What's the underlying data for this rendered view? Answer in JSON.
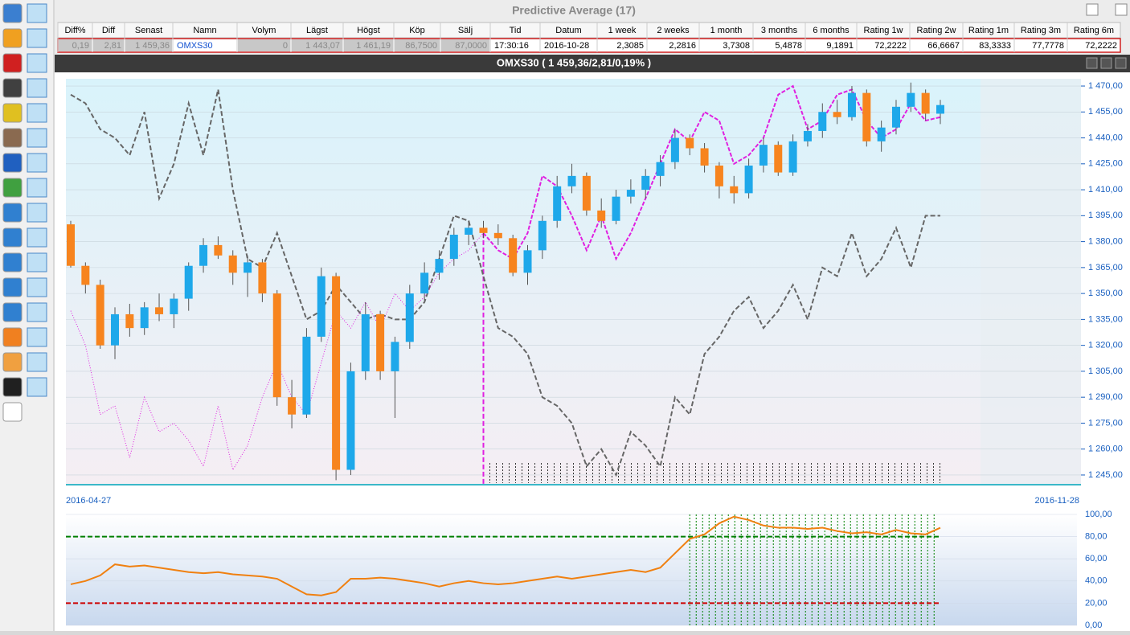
{
  "window_title": "Predictive Average (17)",
  "table": {
    "headers": [
      "Diff%",
      "Diff",
      "Senast",
      "Namn",
      "Volym",
      "Lägst",
      "Högst",
      "Köp",
      "Sälj",
      "Tid",
      "Datum",
      "1 week",
      "2 weeks",
      "1 month",
      "3 months",
      "6 months",
      "Rating 1w",
      "Rating 2w",
      "Rating 1m",
      "Rating 3m",
      "Rating 6m"
    ],
    "rows": [
      [
        "0,19",
        "2,81",
        "1 459,36",
        "OMXS30",
        "0",
        "1 443,07",
        "1 461,19",
        "86,7500",
        "87,0000",
        "17:30:16",
        "2016-10-28",
        "2,3085",
        "2,2816",
        "3,7308",
        "5,4878",
        "9,1891",
        "72,2222",
        "66,6667",
        "83,3333",
        "77,7778",
        "72,2222"
      ]
    ]
  },
  "chart_window_title": "OMXS30 ( 1 459,36/2,81/0,19% )",
  "chart_data": [
    {
      "type": "candlestick",
      "up_color": "#1ea8ea",
      "down_color": "#f7841e",
      "x_labels": [
        "2016-04-27",
        "2016-11-28"
      ],
      "ylim": [
        1239.4,
        1474.2
      ],
      "yticks": [
        {
          "value": 1245,
          "label": "1 245,00"
        },
        {
          "value": 1260,
          "label": "1 260,00"
        },
        {
          "value": 1275,
          "label": "1 275,00"
        },
        {
          "value": 1290,
          "label": "1 290,00"
        },
        {
          "value": 1305,
          "label": "1 305,00"
        },
        {
          "value": 1320,
          "label": "1 320,00"
        },
        {
          "value": 1335,
          "label": "1 335,00"
        },
        {
          "value": 1350,
          "label": "1 350,00"
        },
        {
          "value": 1365,
          "label": "1 365,00"
        },
        {
          "value": 1380,
          "label": "1 380,00"
        },
        {
          "value": 1395,
          "label": "1 395,00"
        },
        {
          "value": 1410,
          "label": "1 410,00"
        },
        {
          "value": 1425,
          "label": "1 425,00"
        },
        {
          "value": 1440,
          "label": "1 440,00"
        },
        {
          "value": 1455,
          "label": "1 455,00"
        },
        {
          "value": 1470,
          "label": "1 470,00"
        }
      ],
      "grid": true,
      "ohlc": [
        [
          1390,
          1392,
          1365,
          1366
        ],
        [
          1366,
          1368,
          1350,
          1355
        ],
        [
          1355,
          1358,
          1318,
          1320
        ],
        [
          1320,
          1342,
          1312,
          1338
        ],
        [
          1338,
          1344,
          1325,
          1330
        ],
        [
          1330,
          1345,
          1326,
          1342
        ],
        [
          1342,
          1350,
          1334,
          1338
        ],
        [
          1338,
          1350,
          1330,
          1347
        ],
        [
          1347,
          1368,
          1340,
          1366
        ],
        [
          1366,
          1382,
          1362,
          1378
        ],
        [
          1378,
          1383,
          1370,
          1372
        ],
        [
          1372,
          1375,
          1355,
          1362
        ],
        [
          1362,
          1372,
          1348,
          1368
        ],
        [
          1368,
          1370,
          1345,
          1350
        ],
        [
          1350,
          1352,
          1285,
          1290
        ],
        [
          1290,
          1300,
          1272,
          1280
        ],
        [
          1280,
          1330,
          1278,
          1325
        ],
        [
          1325,
          1365,
          1322,
          1360
        ],
        [
          1360,
          1362,
          1242,
          1248
        ],
        [
          1248,
          1310,
          1245,
          1305
        ],
        [
          1305,
          1345,
          1300,
          1338
        ],
        [
          1338,
          1340,
          1300,
          1305
        ],
        [
          1305,
          1325,
          1278,
          1322
        ],
        [
          1322,
          1355,
          1318,
          1350
        ],
        [
          1350,
          1368,
          1346,
          1362
        ],
        [
          1362,
          1375,
          1358,
          1370
        ],
        [
          1370,
          1388,
          1366,
          1384
        ],
        [
          1384,
          1392,
          1378,
          1388
        ],
        [
          1388,
          1392,
          1382,
          1385
        ],
        [
          1385,
          1390,
          1378,
          1382
        ],
        [
          1382,
          1384,
          1360,
          1362
        ],
        [
          1362,
          1378,
          1355,
          1375
        ],
        [
          1375,
          1395,
          1370,
          1392
        ],
        [
          1392,
          1418,
          1388,
          1412
        ],
        [
          1412,
          1425,
          1408,
          1418
        ],
        [
          1418,
          1420,
          1395,
          1398
        ],
        [
          1398,
          1405,
          1388,
          1392
        ],
        [
          1392,
          1410,
          1390,
          1406
        ],
        [
          1406,
          1416,
          1402,
          1410
        ],
        [
          1410,
          1422,
          1405,
          1418
        ],
        [
          1418,
          1430,
          1412,
          1426
        ],
        [
          1426,
          1445,
          1422,
          1440
        ],
        [
          1440,
          1442,
          1430,
          1434
        ],
        [
          1434,
          1437,
          1420,
          1424
        ],
        [
          1424,
          1426,
          1405,
          1412
        ],
        [
          1412,
          1418,
          1402,
          1408
        ],
        [
          1408,
          1428,
          1405,
          1424
        ],
        [
          1424,
          1440,
          1420,
          1436
        ],
        [
          1436,
          1438,
          1418,
          1420
        ],
        [
          1420,
          1442,
          1418,
          1438
        ],
        [
          1438,
          1448,
          1435,
          1444
        ],
        [
          1444,
          1460,
          1440,
          1455
        ],
        [
          1455,
          1462,
          1448,
          1452
        ],
        [
          1452,
          1470,
          1450,
          1466
        ],
        [
          1466,
          1468,
          1435,
          1438
        ],
        [
          1438,
          1450,
          1432,
          1446
        ],
        [
          1446,
          1462,
          1442,
          1458
        ],
        [
          1458,
          1472,
          1455,
          1466
        ],
        [
          1466,
          1468,
          1450,
          1454
        ],
        [
          1454,
          1462,
          1448,
          1459
        ]
      ],
      "forecast_start": 28,
      "lines": [
        {
          "color": "#666666",
          "values": [
            1465,
            1460,
            1445,
            1440,
            1430,
            1455,
            1405,
            1425,
            1460,
            1430,
            1468,
            1410,
            1370,
            1365,
            1385,
            1360,
            1335,
            1340,
            1355,
            1345,
            1335,
            1338,
            1335,
            1335,
            1345,
            1370,
            1395,
            1392,
            1360,
            1330,
            1325,
            1315,
            1290,
            1285,
            1275,
            1250,
            1260,
            1245,
            1270,
            1262,
            1250,
            1290,
            1280,
            1315,
            1325,
            1340,
            1348,
            1330,
            1340,
            1355,
            1335,
            1365,
            1360,
            1385,
            1360,
            1370,
            1388,
            1365,
            1395,
            1395
          ]
        },
        {
          "color": "#e020e0",
          "values": [
            1340,
            1320,
            1280,
            1285,
            1255,
            1290,
            1270,
            1275,
            1265,
            1250,
            1285,
            1248,
            1262,
            1290,
            1310,
            1290,
            1280,
            1310,
            1340,
            1330,
            1345,
            1330,
            1350,
            1340,
            1348,
            1362,
            1370,
            1375,
            1385,
            1375,
            1370,
            1385,
            1418,
            1412,
            1395,
            1375,
            1395,
            1370,
            1385,
            1405,
            1425,
            1445,
            1438,
            1455,
            1450,
            1425,
            1430,
            1440,
            1465,
            1470,
            1445,
            1450,
            1465,
            1468,
            1450,
            1440,
            1445,
            1460,
            1450,
            1452
          ]
        }
      ]
    },
    {
      "type": "line",
      "color": "#f08010",
      "ylim": [
        0,
        100
      ],
      "yticks": [
        {
          "value": 0,
          "label": "0,00"
        },
        {
          "value": 20,
          "label": "20,00"
        },
        {
          "value": 40,
          "label": "40,00"
        },
        {
          "value": 60,
          "label": "60,00"
        },
        {
          "value": 80,
          "label": "80,00"
        },
        {
          "value": 100,
          "label": "100,00"
        }
      ],
      "levels": [
        {
          "value": 80,
          "color": "#008000"
        },
        {
          "value": 20,
          "color": "#cc0000"
        }
      ],
      "values": [
        37,
        40,
        45,
        55,
        53,
        54,
        52,
        50,
        48,
        47,
        48,
        46,
        45,
        44,
        42,
        35,
        28,
        27,
        30,
        42,
        42,
        43,
        42,
        40,
        38,
        35,
        38,
        40,
        38,
        37,
        38,
        40,
        42,
        44,
        42,
        44,
        46,
        48,
        50,
        48,
        52,
        65,
        78,
        82,
        92,
        98,
        95,
        90,
        88,
        88,
        87,
        88,
        85,
        83,
        84,
        82,
        86,
        83,
        82,
        88
      ]
    }
  ]
}
